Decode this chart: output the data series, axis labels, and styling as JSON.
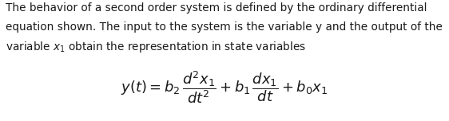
{
  "line1": "The behavior of a second order system is defined by the ordinary differential",
  "line2": "equation shown. The input to the system is the variable y and the output of the",
  "line3": "variable $x_1$ obtain the representation in state variables",
  "equation": "$y(t) = b_2\\,\\dfrac{d^2x_1}{dt^2} + b_1\\,\\dfrac{dx_1}{dt} + b_0 x_1$",
  "text_color": "#1a1a1a",
  "background_color": "#ffffff",
  "text_fontsize": 9.8,
  "eq_fontsize": 13.0,
  "fig_width": 5.62,
  "fig_height": 1.52,
  "dpi": 100
}
